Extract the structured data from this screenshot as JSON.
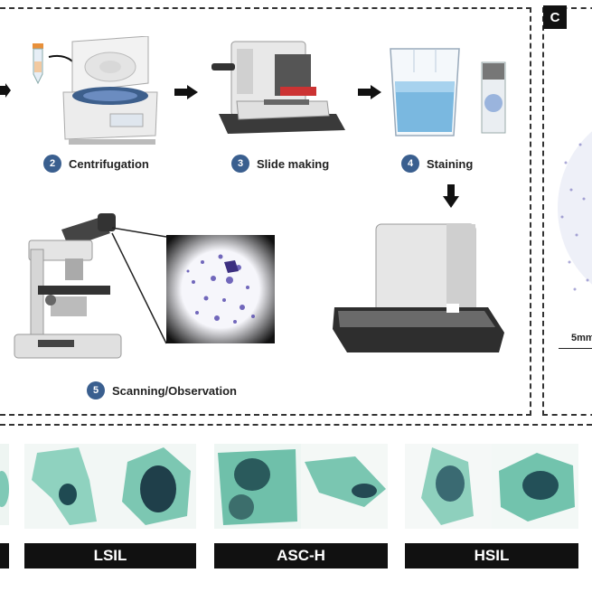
{
  "panel_c_letter": "C",
  "steps": [
    {
      "num": "2",
      "label": "Centrifugation"
    },
    {
      "num": "3",
      "label": "Slide making"
    },
    {
      "num": "4",
      "label": "Staining"
    },
    {
      "num": "5",
      "label": "Scanning/Observation"
    }
  ],
  "scale_bar_text": "5mm",
  "categories": [
    "LSIL",
    "ASC-H",
    "HSIL"
  ],
  "colors": {
    "step_badge": "#3a5f8f",
    "stain": "#7fc9b6",
    "nucleus": "#2b5a5f",
    "cytology_dots": "#5a4fb0"
  }
}
